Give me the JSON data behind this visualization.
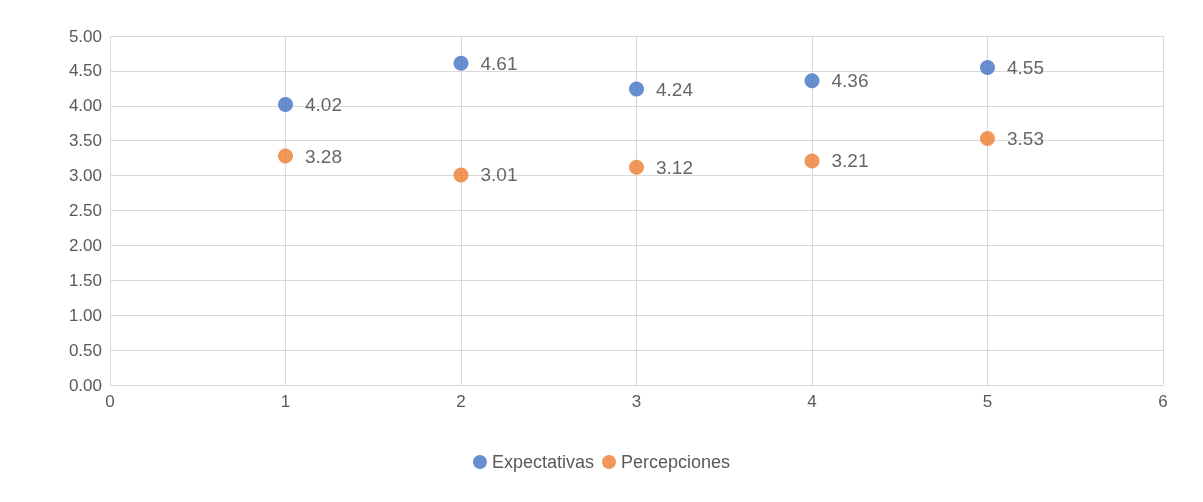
{
  "chart_data": {
    "type": "scatter",
    "x": [
      1,
      2,
      3,
      4,
      5
    ],
    "series": [
      {
        "name": "Expectativas",
        "color": "#4472c4",
        "values": [
          4.02,
          4.61,
          4.24,
          4.36,
          4.55
        ]
      },
      {
        "name": "Percepciones",
        "color": "#ed7d31",
        "values": [
          3.28,
          3.01,
          3.12,
          3.21,
          3.53
        ]
      }
    ],
    "xlim": [
      0,
      6
    ],
    "xticks": [
      0,
      1,
      2,
      3,
      4,
      5,
      6
    ],
    "ylim": [
      0,
      5
    ],
    "yticks": [
      {
        "value": 0,
        "label": "0.00"
      },
      {
        "value": 0.5,
        "label": "0.50"
      },
      {
        "value": 1,
        "label": "1.00"
      },
      {
        "value": 1.5,
        "label": "1.50"
      },
      {
        "value": 2,
        "label": "2.00"
      },
      {
        "value": 2.5,
        "label": "2.50"
      },
      {
        "value": 3,
        "label": "3.00"
      },
      {
        "value": 3.5,
        "label": "3.50"
      },
      {
        "value": 4,
        "label": "4.00"
      },
      {
        "value": 4.5,
        "label": "4.50"
      },
      {
        "value": 5,
        "label": "5.00"
      }
    ],
    "grid": true,
    "legend": "bottom",
    "marker": "circle",
    "data_labels": true
  }
}
